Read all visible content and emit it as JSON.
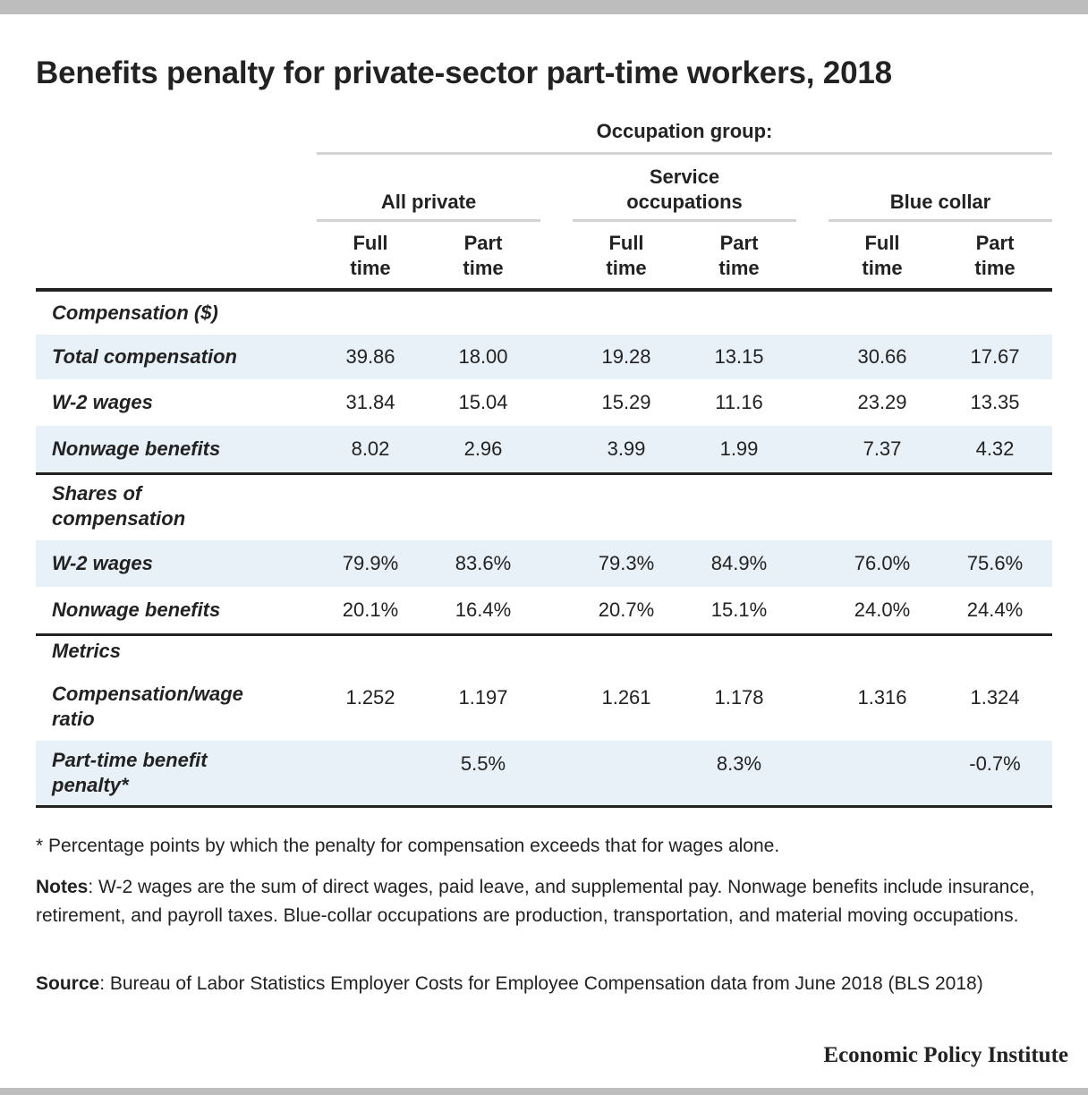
{
  "chart_data": {
    "type": "table",
    "title": "Benefits penalty for private-sector part-time workers, 2018",
    "header": {
      "occupation_label": "Occupation group:",
      "groups": [
        "All private",
        "Service occupations",
        "Blue collar"
      ],
      "subcolumns": [
        "Full time",
        "Part time"
      ]
    },
    "sections": [
      {
        "title": "Compensation ($)",
        "rows": [
          {
            "label": "Total compensation",
            "values": [
              "39.86",
              "18.00",
              "19.28",
              "13.15",
              "30.66",
              "17.67"
            ]
          },
          {
            "label": "W-2 wages",
            "values": [
              "31.84",
              "15.04",
              "15.29",
              "11.16",
              "23.29",
              "13.35"
            ]
          },
          {
            "label": "Nonwage benefits",
            "values": [
              "8.02",
              "2.96",
              "3.99",
              "1.99",
              "7.37",
              "4.32"
            ]
          }
        ]
      },
      {
        "title": "Shares of compensation",
        "rows": [
          {
            "label": "W-2 wages",
            "values": [
              "79.9%",
              "83.6%",
              "79.3%",
              "84.9%",
              "76.0%",
              "75.6%"
            ]
          },
          {
            "label": "Nonwage benefits",
            "values": [
              "20.1%",
              "16.4%",
              "20.7%",
              "15.1%",
              "24.0%",
              "24.4%"
            ]
          }
        ]
      },
      {
        "title": "Metrics",
        "rows": [
          {
            "label": "Compensation/wage ratio",
            "values": [
              "1.252",
              "1.197",
              "1.261",
              "1.178",
              "1.316",
              "1.324"
            ]
          },
          {
            "label": "Part-time benefit penalty*",
            "values": [
              "",
              "5.5%",
              "",
              "8.3%",
              "",
              "-0.7%"
            ]
          }
        ]
      }
    ]
  },
  "footnote": "* Percentage points by which the penalty for compensation exceeds that for wages alone.",
  "notes": {
    "label": "Notes",
    "text": ": W-2 wages are the sum of direct wages, paid leave, and supplemental pay. Nonwage benefits include insurance, retirement, and payroll taxes. Blue-collar occupations are production, transportation, and material moving occupations."
  },
  "source": {
    "label": "Source",
    "text": ": Bureau of Labor Statistics Employer Costs for Employee Compensation data from June 2018 (BLS 2018)"
  },
  "brand": "Economic Policy Institute",
  "colors": {
    "row_shade": "#e8f0f8",
    "rule": "#222222",
    "header_line": "#d3d3d3"
  }
}
